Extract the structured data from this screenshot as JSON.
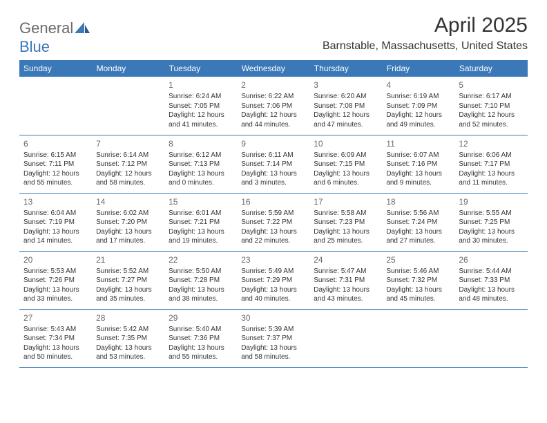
{
  "logo": {
    "general": "General",
    "blue": "Blue"
  },
  "title": "April 2025",
  "location": "Barnstable, Massachusetts, United States",
  "header_color": "#3a78b8",
  "weekdays": [
    "Sunday",
    "Monday",
    "Tuesday",
    "Wednesday",
    "Thursday",
    "Friday",
    "Saturday"
  ],
  "weeks": [
    [
      null,
      null,
      {
        "d": "1",
        "sr": "6:24 AM",
        "ss": "7:05 PM",
        "dl": "12 hours and 41 minutes."
      },
      {
        "d": "2",
        "sr": "6:22 AM",
        "ss": "7:06 PM",
        "dl": "12 hours and 44 minutes."
      },
      {
        "d": "3",
        "sr": "6:20 AM",
        "ss": "7:08 PM",
        "dl": "12 hours and 47 minutes."
      },
      {
        "d": "4",
        "sr": "6:19 AM",
        "ss": "7:09 PM",
        "dl": "12 hours and 49 minutes."
      },
      {
        "d": "5",
        "sr": "6:17 AM",
        "ss": "7:10 PM",
        "dl": "12 hours and 52 minutes."
      }
    ],
    [
      {
        "d": "6",
        "sr": "6:15 AM",
        "ss": "7:11 PM",
        "dl": "12 hours and 55 minutes."
      },
      {
        "d": "7",
        "sr": "6:14 AM",
        "ss": "7:12 PM",
        "dl": "12 hours and 58 minutes."
      },
      {
        "d": "8",
        "sr": "6:12 AM",
        "ss": "7:13 PM",
        "dl": "13 hours and 0 minutes."
      },
      {
        "d": "9",
        "sr": "6:11 AM",
        "ss": "7:14 PM",
        "dl": "13 hours and 3 minutes."
      },
      {
        "d": "10",
        "sr": "6:09 AM",
        "ss": "7:15 PM",
        "dl": "13 hours and 6 minutes."
      },
      {
        "d": "11",
        "sr": "6:07 AM",
        "ss": "7:16 PM",
        "dl": "13 hours and 9 minutes."
      },
      {
        "d": "12",
        "sr": "6:06 AM",
        "ss": "7:17 PM",
        "dl": "13 hours and 11 minutes."
      }
    ],
    [
      {
        "d": "13",
        "sr": "6:04 AM",
        "ss": "7:19 PM",
        "dl": "13 hours and 14 minutes."
      },
      {
        "d": "14",
        "sr": "6:02 AM",
        "ss": "7:20 PM",
        "dl": "13 hours and 17 minutes."
      },
      {
        "d": "15",
        "sr": "6:01 AM",
        "ss": "7:21 PM",
        "dl": "13 hours and 19 minutes."
      },
      {
        "d": "16",
        "sr": "5:59 AM",
        "ss": "7:22 PM",
        "dl": "13 hours and 22 minutes."
      },
      {
        "d": "17",
        "sr": "5:58 AM",
        "ss": "7:23 PM",
        "dl": "13 hours and 25 minutes."
      },
      {
        "d": "18",
        "sr": "5:56 AM",
        "ss": "7:24 PM",
        "dl": "13 hours and 27 minutes."
      },
      {
        "d": "19",
        "sr": "5:55 AM",
        "ss": "7:25 PM",
        "dl": "13 hours and 30 minutes."
      }
    ],
    [
      {
        "d": "20",
        "sr": "5:53 AM",
        "ss": "7:26 PM",
        "dl": "13 hours and 33 minutes."
      },
      {
        "d": "21",
        "sr": "5:52 AM",
        "ss": "7:27 PM",
        "dl": "13 hours and 35 minutes."
      },
      {
        "d": "22",
        "sr": "5:50 AM",
        "ss": "7:28 PM",
        "dl": "13 hours and 38 minutes."
      },
      {
        "d": "23",
        "sr": "5:49 AM",
        "ss": "7:29 PM",
        "dl": "13 hours and 40 minutes."
      },
      {
        "d": "24",
        "sr": "5:47 AM",
        "ss": "7:31 PM",
        "dl": "13 hours and 43 minutes."
      },
      {
        "d": "25",
        "sr": "5:46 AM",
        "ss": "7:32 PM",
        "dl": "13 hours and 45 minutes."
      },
      {
        "d": "26",
        "sr": "5:44 AM",
        "ss": "7:33 PM",
        "dl": "13 hours and 48 minutes."
      }
    ],
    [
      {
        "d": "27",
        "sr": "5:43 AM",
        "ss": "7:34 PM",
        "dl": "13 hours and 50 minutes."
      },
      {
        "d": "28",
        "sr": "5:42 AM",
        "ss": "7:35 PM",
        "dl": "13 hours and 53 minutes."
      },
      {
        "d": "29",
        "sr": "5:40 AM",
        "ss": "7:36 PM",
        "dl": "13 hours and 55 minutes."
      },
      {
        "d": "30",
        "sr": "5:39 AM",
        "ss": "7:37 PM",
        "dl": "13 hours and 58 minutes."
      },
      null,
      null,
      null
    ]
  ],
  "labels": {
    "sunrise": "Sunrise: ",
    "sunset": "Sunset: ",
    "daylight": "Daylight: "
  }
}
